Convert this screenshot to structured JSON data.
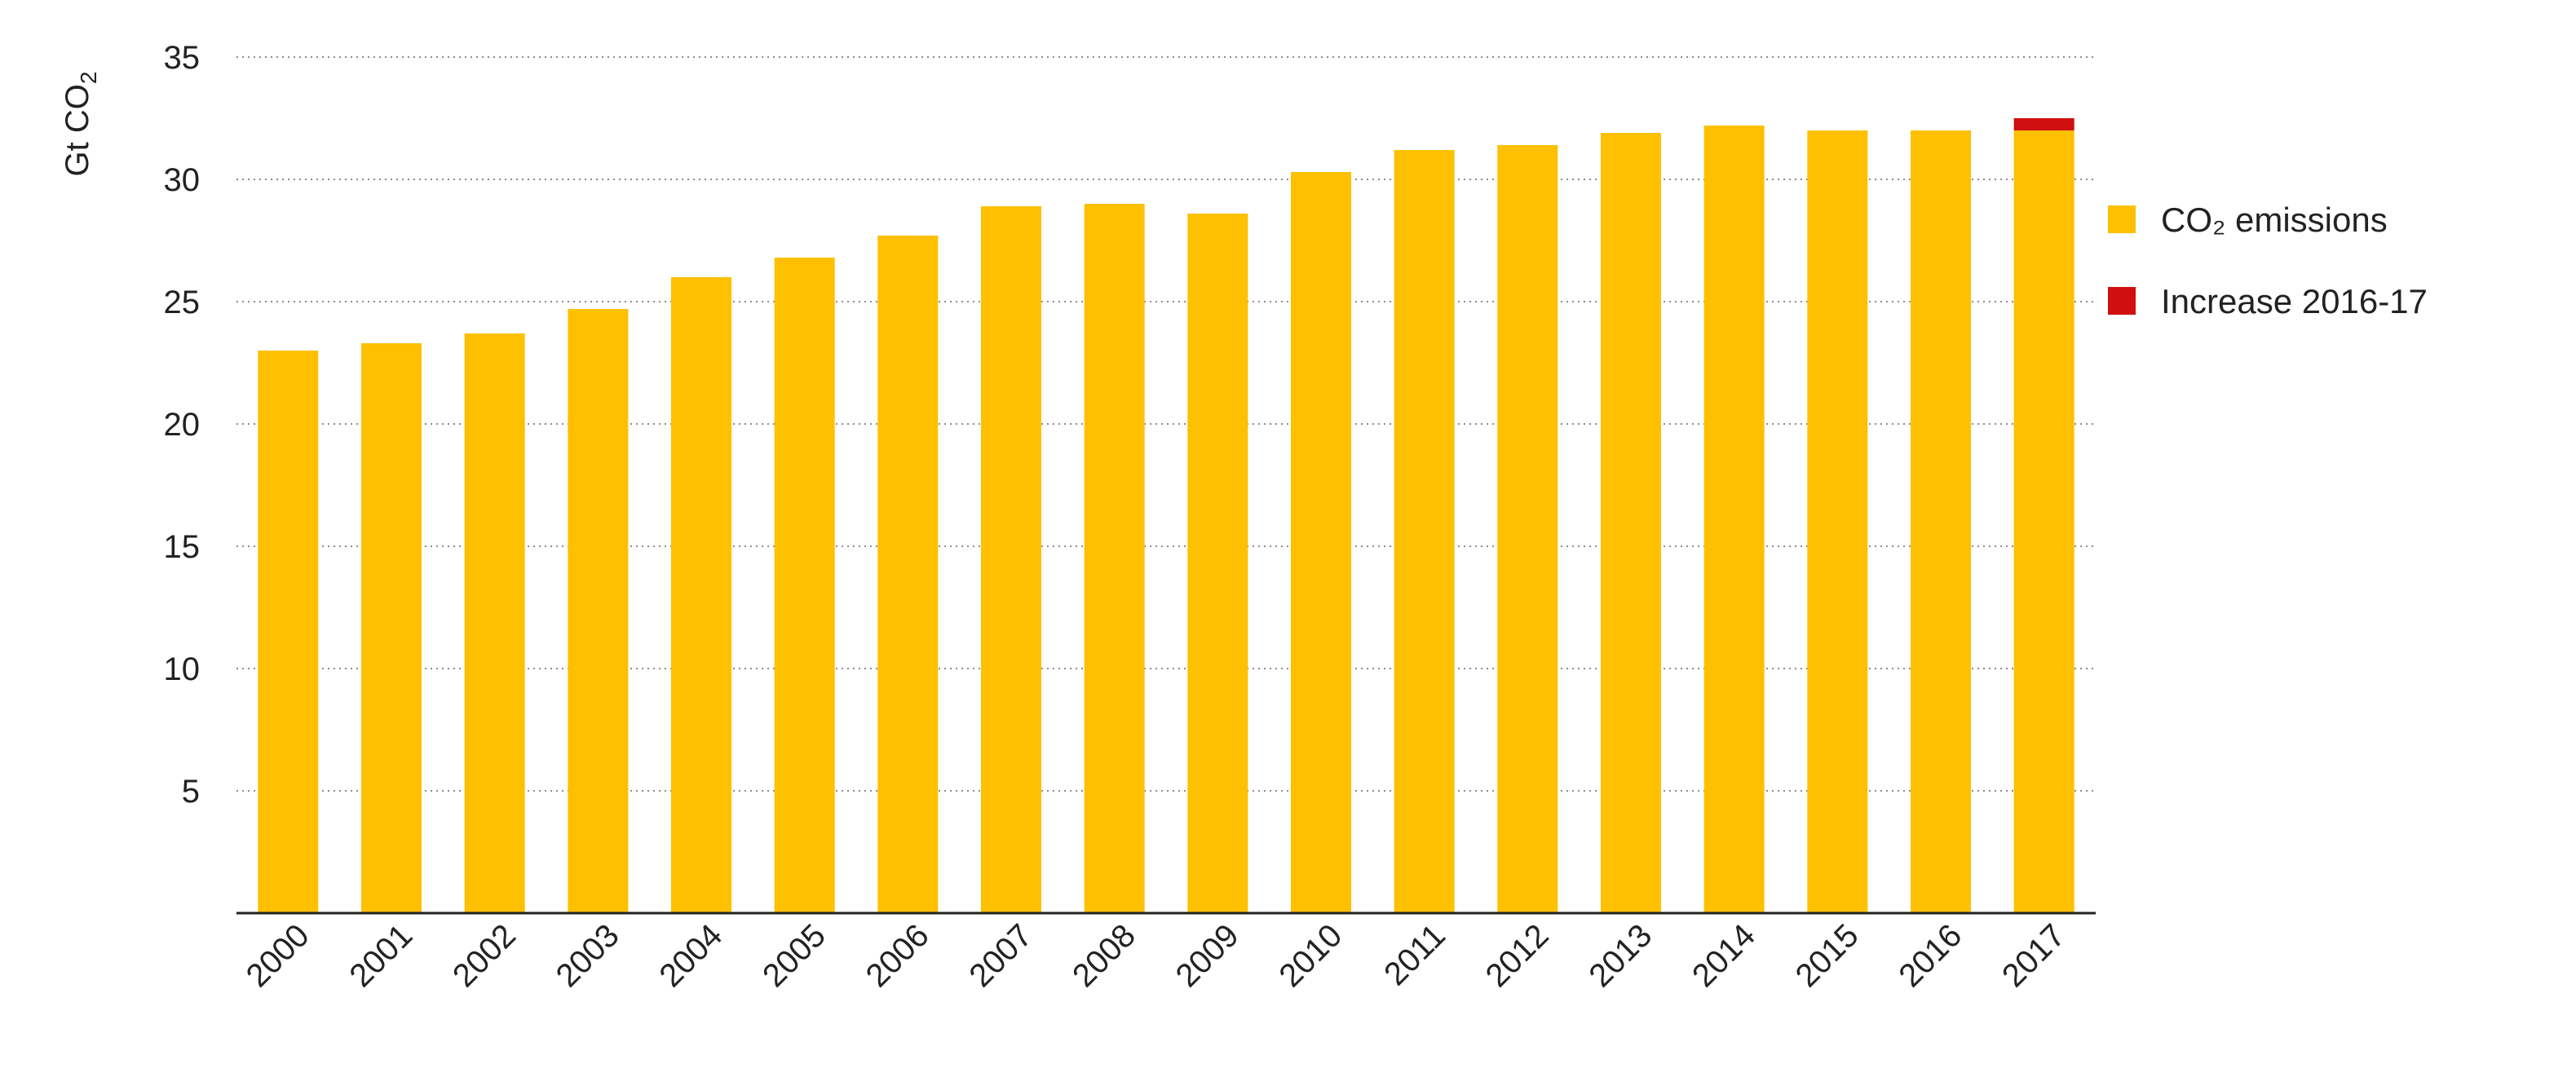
{
  "chart_data": {
    "type": "bar",
    "stacked": true,
    "categories": [
      "2000",
      "2001",
      "2002",
      "2003",
      "2004",
      "2005",
      "2006",
      "2007",
      "2008",
      "2009",
      "2010",
      "2011",
      "2012",
      "2013",
      "2014",
      "2015",
      "2016",
      "2017"
    ],
    "series": [
      {
        "name": "CO₂ emissions",
        "color": "#fec000",
        "values": [
          23.0,
          23.3,
          23.7,
          24.7,
          26.0,
          26.8,
          27.7,
          28.9,
          29.0,
          28.6,
          30.3,
          31.2,
          31.4,
          31.9,
          32.2,
          32.0,
          32.0,
          32.0
        ]
      },
      {
        "name": "Increase 2016-17",
        "color": "#d00f0f",
        "values": [
          0,
          0,
          0,
          0,
          0,
          0,
          0,
          0,
          0,
          0,
          0,
          0,
          0,
          0,
          0,
          0,
          0,
          0.5
        ]
      }
    ],
    "ylabel": "Gt CO₂",
    "ylim": [
      0,
      35
    ],
    "yticks": [
      5,
      10,
      15,
      20,
      25,
      30,
      35
    ],
    "grid": true,
    "legend_position": "right"
  }
}
